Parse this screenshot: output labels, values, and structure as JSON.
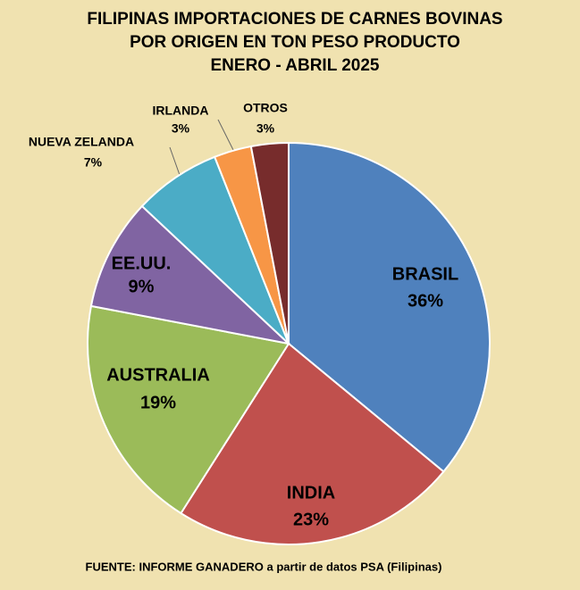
{
  "chart_data": {
    "type": "pie",
    "title": [
      "FILIPINAS IMPORTACIONES DE CARNES BOVINAS",
      "POR ORIGEN EN TON PESO PRODUCTO",
      "ENERO - ABRIL 2025"
    ],
    "categories": [
      "BRASIL",
      "INDIA",
      "AUSTRALIA",
      "EE.UU.",
      "NUEVA ZELANDA",
      "IRLANDA",
      "OTROS"
    ],
    "values": [
      36,
      23,
      19,
      9,
      7,
      3,
      3
    ],
    "value_labels": [
      "36%",
      "23%",
      "19%",
      "9%",
      "7%",
      "3%",
      "3%"
    ],
    "colors": [
      "#4f81bd",
      "#c0504d",
      "#9bbb59",
      "#8064a2",
      "#4bacc6",
      "#f79646",
      "#772c2c"
    ],
    "source": "FUENTE: INFORME GANADERO a partir de datos PSA (Filipinas)"
  }
}
